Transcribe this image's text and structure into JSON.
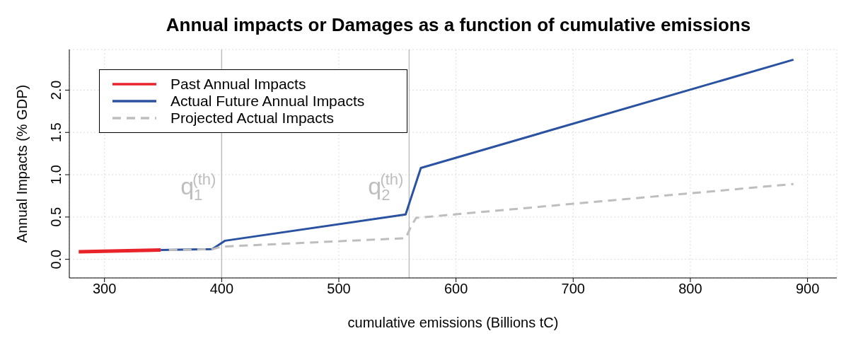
{
  "chart_data": {
    "type": "line",
    "title": "Annual impacts or Damages as a function of cumulative emissions",
    "xlabel": "cumulative emissions (Billions tC)",
    "ylabel": "Annual Impacts (% GDP)",
    "xlim": [
      270,
      925
    ],
    "xticks": [
      300,
      400,
      500,
      600,
      700,
      800,
      900
    ],
    "ylim": [
      -0.22,
      2.48
    ],
    "yticks": [
      {
        "value": 0,
        "label": "0.0"
      },
      0.5,
      {
        "value": 1,
        "label": "1.0"
      },
      1.5,
      {
        "value": 2,
        "label": "2.0"
      }
    ],
    "grid": true,
    "legend": "top left",
    "marker": "none",
    "series": [
      {
        "name": "Past Annual Impacts",
        "color": "#e8232a",
        "x": [
          278,
          348
        ],
        "values": [
          0.09,
          0.11
        ],
        "line_style": "solid"
      },
      {
        "name": "Actual Future Annual Impacts",
        "color": "#2a52a0",
        "x": [
          348,
          392,
          403,
          557,
          570,
          888
        ],
        "values": [
          0.11,
          0.12,
          0.22,
          0.53,
          1.08,
          2.36
        ],
        "line_style": "solid"
      },
      {
        "name": "Projected Actual Impacts",
        "color": "#bebebe",
        "x": [
          355,
          392,
          400,
          557,
          562,
          566,
          888
        ],
        "values": [
          0.11,
          0.12,
          0.15,
          0.25,
          0.4,
          0.49,
          0.89
        ],
        "line_style": "dashed"
      }
    ],
    "ref_lines": [
      {
        "axis": "x",
        "value": 400,
        "label": "q$_{1}$$^{(th)}$",
        "color": "#bebebe"
      },
      {
        "axis": "x",
        "value": 560,
        "label": "q$_{2}$$^{(th)}$",
        "color": "#bebebe"
      }
    ]
  }
}
